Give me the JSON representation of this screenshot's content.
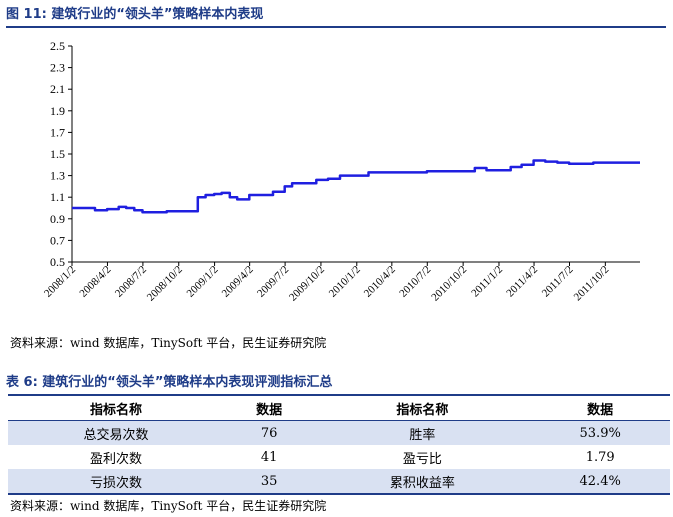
{
  "figure": {
    "title": "图 11:  建筑行业的“领头羊”策略样本内表现",
    "source": "资料来源：wind 数据库，TinySoft 平台，民生证券研究院"
  },
  "chart_data": {
    "type": "line",
    "title": "",
    "xlabel": "",
    "ylabel": "",
    "ylim": [
      0.5,
      2.5
    ],
    "yticks": [
      0.5,
      0.7,
      0.9,
      1.1,
      1.3,
      1.5,
      1.7,
      1.9,
      2.1,
      2.3,
      2.5
    ],
    "xticks": [
      "2008/1/2",
      "2008/4/2",
      "2008/7/2",
      "2008/10/2",
      "2009/1/2",
      "2009/4/2",
      "2009/7/2",
      "2009/10/2",
      "2010/1/2",
      "2010/4/2",
      "2010/7/2",
      "2010/10/2",
      "2011/1/2",
      "2011/4/2",
      "2011/7/2",
      "2011/10/2"
    ],
    "grid": false,
    "line_color": "#1f1fe0",
    "series": [
      {
        "x": [
          "2008/1/2",
          "2008/2/1",
          "2008/3/1",
          "2008/4/1",
          "2008/5/1",
          "2008/5/20",
          "2008/6/10",
          "2008/7/1",
          "2008/8/1",
          "2008/9/1",
          "2008/10/1",
          "2008/11/10",
          "2008/11/20",
          "2008/12/10",
          "2009/1/1",
          "2009/1/20",
          "2009/2/10",
          "2009/3/1",
          "2009/4/1",
          "2009/5/1",
          "2009/6/1",
          "2009/7/1",
          "2009/7/20",
          "2009/8/20",
          "2009/9/20",
          "2009/10/20",
          "2009/11/20",
          "2010/1/1",
          "2010/2/1",
          "2010/3/1",
          "2010/5/1",
          "2010/7/1",
          "2010/9/1",
          "2010/10/10",
          "2010/11/1",
          "2010/12/1",
          "2011/1/1",
          "2011/2/1",
          "2011/3/1",
          "2011/4/1",
          "2011/5/1",
          "2011/6/1",
          "2011/7/1",
          "2011/8/1",
          "2011/9/1",
          "2011/10/1",
          "2011/11/1",
          "2011/12/1",
          "2011/12/30"
        ],
        "values": [
          1.0,
          1.0,
          0.98,
          0.99,
          1.01,
          1.0,
          0.98,
          0.96,
          0.96,
          0.97,
          0.97,
          0.97,
          1.1,
          1.12,
          1.13,
          1.14,
          1.1,
          1.08,
          1.12,
          1.12,
          1.15,
          1.2,
          1.23,
          1.23,
          1.26,
          1.27,
          1.3,
          1.3,
          1.33,
          1.33,
          1.33,
          1.34,
          1.34,
          1.34,
          1.37,
          1.35,
          1.35,
          1.38,
          1.4,
          1.44,
          1.43,
          1.42,
          1.41,
          1.41,
          1.42,
          1.42,
          1.42,
          1.42,
          1.42
        ]
      }
    ]
  },
  "table": {
    "title": "表 6:  建筑行业的“领头羊”策略样本内表现评测指标汇总",
    "headers": [
      "指标名称",
      "数据",
      "指标名称",
      "数据"
    ],
    "rows": [
      [
        "总交易次数",
        "76",
        "胜率",
        "53.9%"
      ],
      [
        "盈利次数",
        "41",
        "盈亏比",
        "1.79"
      ],
      [
        "亏损次数",
        "35",
        "累积收益率",
        "42.4%"
      ]
    ],
    "source": "资料来源：wind 数据库，TinySoft 平台，民生证券研究院"
  }
}
